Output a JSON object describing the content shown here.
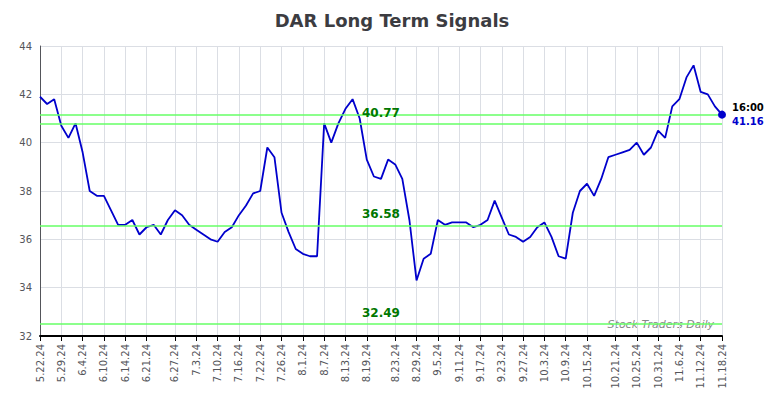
{
  "chart_data": {
    "type": "line",
    "title": "DAR Long Term Signals",
    "categories": [
      "5.22.24",
      null,
      null,
      "5.29.24",
      null,
      null,
      "6.4.24",
      null,
      null,
      "6.10.24",
      null,
      null,
      "6.14.24",
      null,
      null,
      "6.21.24",
      null,
      null,
      null,
      "6.27.24",
      null,
      null,
      "7.3.24",
      null,
      null,
      "7.10.24",
      null,
      null,
      "7.16.24",
      null,
      null,
      "7.22.24",
      null,
      null,
      "7.26.24",
      null,
      null,
      "8.1.24",
      null,
      null,
      "8.7.24",
      null,
      null,
      "8.13.24",
      null,
      null,
      "8.19.24",
      null,
      null,
      null,
      "8.23.24",
      null,
      null,
      "8.29.24",
      null,
      null,
      "9.5.24",
      null,
      null,
      "9.11.24",
      null,
      null,
      "9.17.24",
      null,
      null,
      "9.23.24",
      null,
      null,
      "9.27.24",
      null,
      null,
      "10.3.24",
      null,
      null,
      "10.9.24",
      null,
      null,
      "10.15.24",
      null,
      null,
      null,
      "10.21.24",
      null,
      null,
      "10.25.24",
      null,
      null,
      "10.31.24",
      null,
      null,
      "11.6.24",
      null,
      null,
      "11.12.24",
      null,
      null,
      "11.18.24"
    ],
    "values": [
      41.9,
      41.6,
      41.8,
      40.7,
      40.2,
      40.8,
      39.6,
      38.0,
      37.8,
      37.8,
      37.2,
      36.6,
      36.6,
      36.8,
      36.2,
      36.5,
      36.6,
      36.2,
      36.8,
      37.2,
      37.0,
      36.6,
      36.4,
      36.2,
      36.0,
      35.9,
      36.3,
      36.5,
      37.0,
      37.4,
      37.9,
      38.0,
      39.8,
      39.4,
      37.1,
      36.3,
      35.6,
      35.4,
      35.3,
      35.3,
      40.8,
      40.0,
      40.8,
      41.4,
      41.8,
      41.0,
      39.3,
      38.6,
      38.5,
      39.3,
      39.1,
      38.5,
      36.8,
      34.3,
      35.2,
      35.4,
      36.8,
      36.6,
      36.7,
      36.7,
      36.7,
      36.5,
      36.6,
      36.8,
      37.6,
      36.9,
      36.2,
      36.1,
      35.9,
      36.1,
      36.5,
      36.7,
      36.1,
      35.3,
      35.2,
      37.1,
      38.0,
      38.3,
      37.8,
      38.5,
      39.4,
      39.5,
      39.6,
      39.7,
      40.0,
      39.5,
      39.8,
      40.5,
      40.2,
      41.5,
      41.8,
      42.7,
      43.2,
      42.1,
      42.0,
      41.5,
      41.16
    ],
    "color": "#0000cc",
    "ylim": [
      32,
      44
    ],
    "yticks": [
      32,
      34,
      36,
      38,
      40,
      42,
      44
    ],
    "grid": true,
    "hlines": [
      {
        "value": 32.49,
        "color": "#66ff66",
        "label": "32.49",
        "label_color": "#007700"
      },
      {
        "value": 36.58,
        "color": "#66ff66",
        "label": "36.58",
        "label_color": "#007700"
      },
      {
        "value": 41.16,
        "color": "#66ff66"
      },
      {
        "value": 40.77,
        "color": "#66ff66",
        "label": "40.77",
        "label_color": "#007700"
      }
    ],
    "endpoint": {
      "value": 41.16,
      "labels": [
        "16:00",
        "41.16"
      ],
      "label_colors": [
        "#000000",
        "#0000cc"
      ]
    },
    "watermark": {
      "text": "Stock Traders Daily",
      "color": "#888888"
    }
  }
}
